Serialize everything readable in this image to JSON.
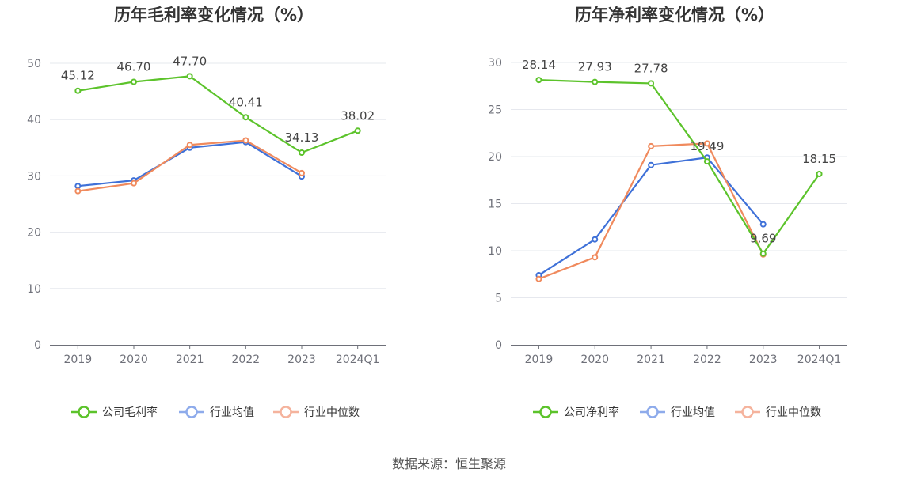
{
  "colors": {
    "series": [
      "#5cc32b",
      "#3f71d8",
      "#f08a5d"
    ],
    "legend": [
      "#5cc32b",
      "#8eabeb",
      "#f5b39d"
    ],
    "grid": "#e6e8ee",
    "axis": "#6e7079"
  },
  "source": "数据来源：恒生聚源",
  "chart_data": [
    {
      "type": "line",
      "title": "历年毛利率变化情况（%）",
      "categories": [
        "2019",
        "2020",
        "2021",
        "2022",
        "2023",
        "2024Q1"
      ],
      "ylim": [
        0,
        50
      ],
      "yticks": [
        0,
        10,
        20,
        30,
        40,
        50
      ],
      "grid": true,
      "legend_position": "bottom",
      "series": [
        {
          "name": "公司毛利率",
          "values": [
            45.12,
            46.7,
            47.7,
            40.41,
            34.13,
            38.02
          ],
          "data_labels": true
        },
        {
          "name": "行业均值",
          "values": [
            28.2,
            29.2,
            35.0,
            36.0,
            29.9,
            null
          ],
          "data_labels": false
        },
        {
          "name": "行业中位数",
          "values": [
            27.3,
            28.7,
            35.5,
            36.3,
            30.5,
            null
          ],
          "data_labels": false
        }
      ]
    },
    {
      "type": "line",
      "title": "历年净利率变化情况（%）",
      "categories": [
        "2019",
        "2020",
        "2021",
        "2022",
        "2023",
        "2024Q1"
      ],
      "ylim": [
        0,
        30
      ],
      "yticks": [
        0,
        5,
        10,
        15,
        20,
        25,
        30
      ],
      "grid": true,
      "legend_position": "bottom",
      "series": [
        {
          "name": "公司净利率",
          "values": [
            28.14,
            27.93,
            27.78,
            19.49,
            9.69,
            18.15
          ],
          "data_labels": true
        },
        {
          "name": "行业均值",
          "values": [
            7.4,
            11.2,
            19.1,
            19.9,
            12.8,
            null
          ],
          "data_labels": false
        },
        {
          "name": "行业中位数",
          "values": [
            7.0,
            9.3,
            21.1,
            21.4,
            9.6,
            null
          ],
          "data_labels": false
        }
      ]
    }
  ]
}
